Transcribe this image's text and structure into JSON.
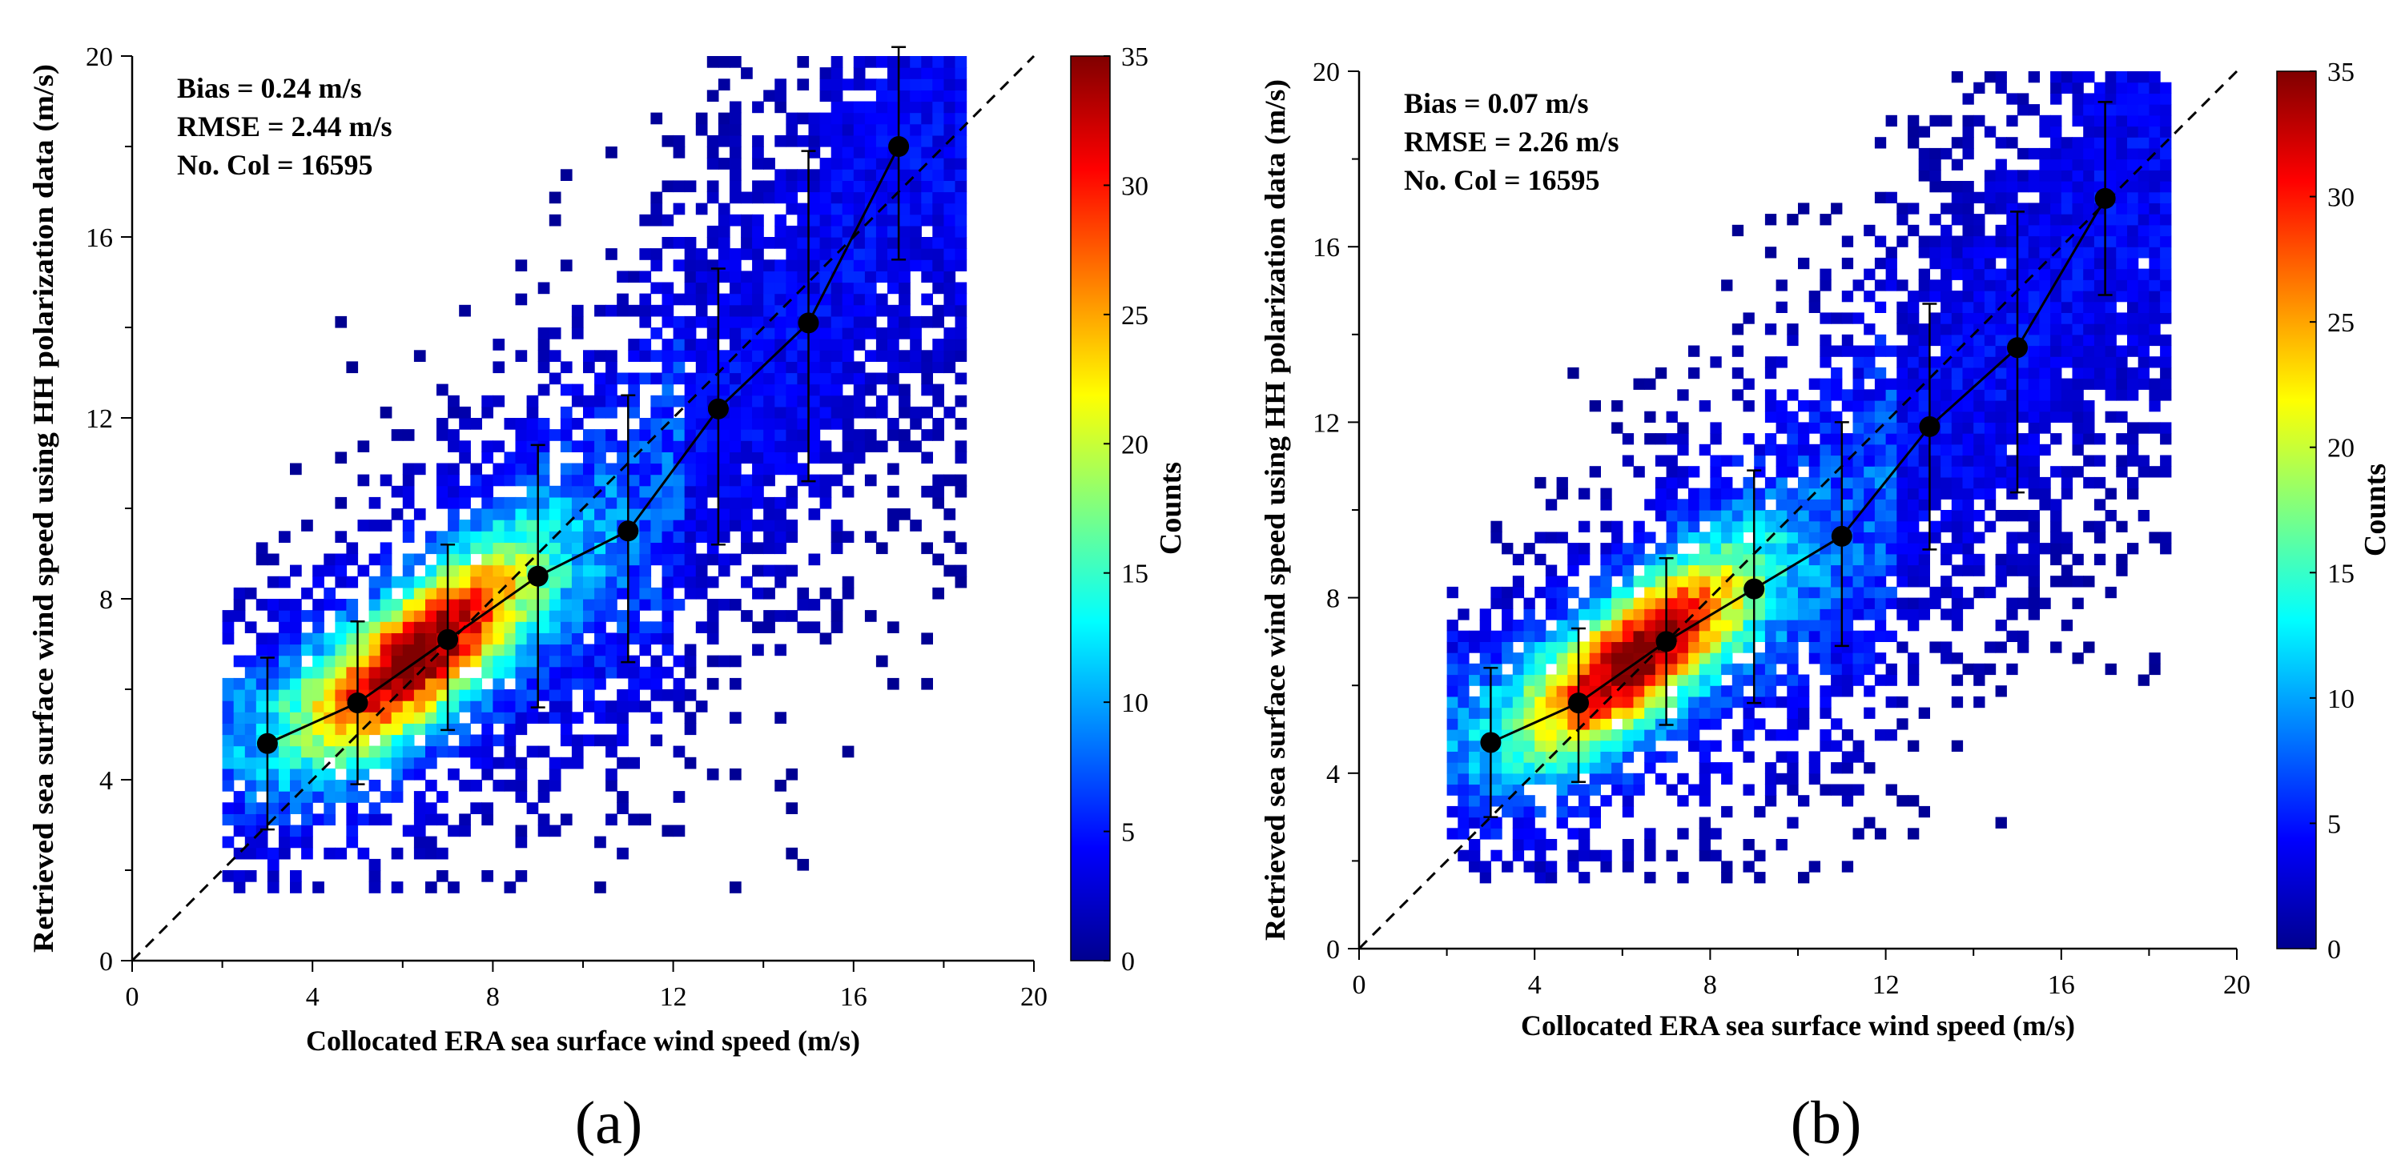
{
  "figure": {
    "panels": [
      "(a)",
      "(b)"
    ]
  },
  "chart_data": [
    {
      "type": "heatmap",
      "panel_label": "(a)",
      "title": "",
      "xlabel": "Collocated ERA sea surface wind speed (m/s)",
      "ylabel": "Retrieved sea surface wind speed using HH polarization data (m/s)",
      "xlim": [
        0,
        20
      ],
      "ylim": [
        0,
        20
      ],
      "xticks": [
        0,
        4,
        8,
        12,
        16,
        20
      ],
      "yticks": [
        0,
        4,
        8,
        12,
        16,
        20
      ],
      "colorbar": {
        "label": "Counts",
        "range": [
          0,
          35
        ],
        "ticks": [
          0,
          5,
          10,
          15,
          20,
          25,
          30,
          35
        ]
      },
      "stats": [
        "Bias = 0.24 m/s",
        "RMSE = 2.44 m/s",
        "No. Col = 16595"
      ],
      "reference_line": {
        "style": "dashed",
        "from": [
          0,
          0
        ],
        "to": [
          20,
          20
        ]
      },
      "binned_means": {
        "x": [
          3,
          5,
          7,
          9,
          11,
          13,
          15,
          17
        ],
        "y": [
          4.8,
          5.7,
          7.1,
          8.5,
          9.5,
          12.2,
          14.1,
          18.0
        ],
        "error_low": [
          2.9,
          3.9,
          5.1,
          5.6,
          6.6,
          9.2,
          10.6,
          15.5
        ],
        "error_high": [
          6.7,
          7.5,
          9.2,
          11.4,
          12.5,
          15.3,
          17.9,
          20.2
        ]
      }
    },
    {
      "type": "heatmap",
      "panel_label": "(b)",
      "title": "",
      "xlabel": "Collocated ERA sea surface wind speed (m/s)",
      "ylabel": "Retrieved sea surface wind speed using HH polarization data (m/s)",
      "xlim": [
        0,
        20
      ],
      "ylim": [
        0,
        20
      ],
      "xticks": [
        0,
        4,
        8,
        12,
        16,
        20
      ],
      "yticks": [
        0,
        4,
        8,
        12,
        16,
        20
      ],
      "colorbar": {
        "label": "Counts",
        "range": [
          0,
          35
        ],
        "ticks": [
          0,
          5,
          10,
          15,
          20,
          25,
          30,
          35
        ]
      },
      "stats": [
        "Bias = 0.07 m/s",
        "RMSE = 2.26 m/s",
        "No. Col = 16595"
      ],
      "reference_line": {
        "style": "dashed",
        "from": [
          0,
          0
        ],
        "to": [
          20,
          20
        ]
      },
      "binned_means": {
        "x": [
          3,
          5,
          7,
          9,
          11,
          13,
          15,
          17
        ],
        "y": [
          4.7,
          5.6,
          7.0,
          8.2,
          9.4,
          11.9,
          13.7,
          17.1
        ],
        "error_low": [
          3.0,
          3.8,
          5.1,
          5.6,
          6.9,
          9.1,
          10.4,
          14.9
        ],
        "error_high": [
          6.4,
          7.3,
          8.9,
          10.9,
          12.0,
          14.7,
          16.8,
          19.3
        ]
      }
    }
  ]
}
